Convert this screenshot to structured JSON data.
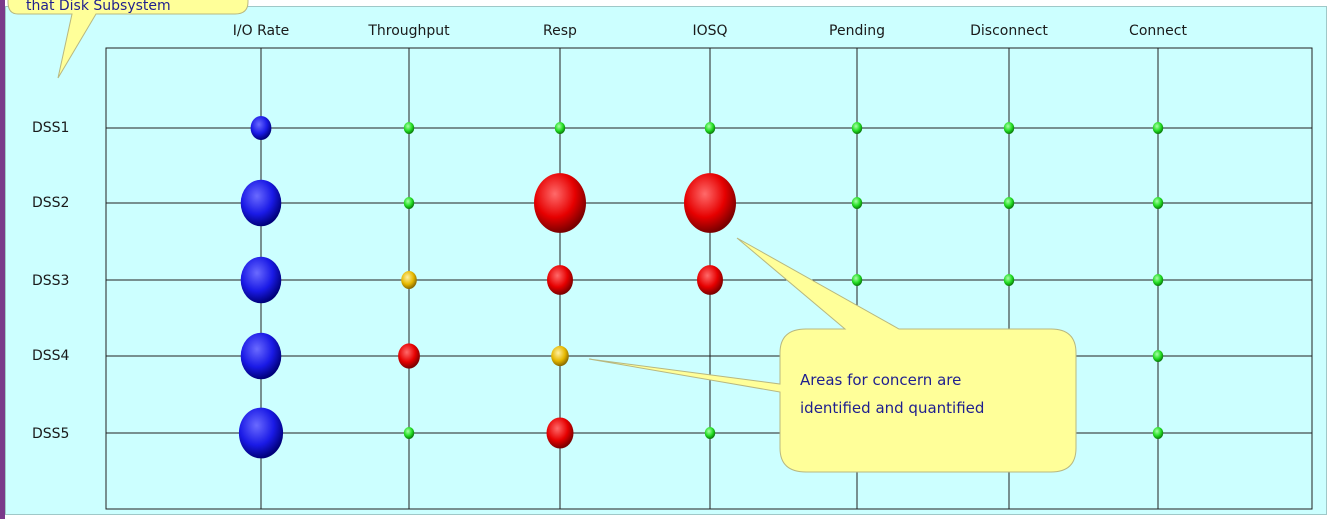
{
  "chart_data": {
    "type": "bubble-matrix",
    "columns": [
      "I/O Rate",
      "Throughput",
      "Resp",
      "IOSQ",
      "Pending",
      "Disconnect",
      "Connect"
    ],
    "rows": [
      "DSS1",
      "DSS2",
      "DSS3",
      "DSS4",
      "DSS5"
    ],
    "cells": [
      [
        {
          "color": "blue",
          "size": 0.4
        },
        {
          "color": "green",
          "size": 0.2
        },
        {
          "color": "green",
          "size": 0.2
        },
        {
          "color": "green",
          "size": 0.2
        },
        {
          "color": "green",
          "size": 0.2
        },
        {
          "color": "green",
          "size": 0.2
        },
        {
          "color": "green",
          "size": 0.2
        }
      ],
      [
        {
          "color": "blue",
          "size": 0.78
        },
        {
          "color": "green",
          "size": 0.2
        },
        {
          "color": "red",
          "size": 1.0
        },
        {
          "color": "red",
          "size": 1.0
        },
        {
          "color": "green",
          "size": 0.2
        },
        {
          "color": "green",
          "size": 0.2
        },
        {
          "color": "green",
          "size": 0.2
        }
      ],
      [
        {
          "color": "blue",
          "size": 0.78
        },
        {
          "color": "orange",
          "size": 0.3
        },
        {
          "color": "red",
          "size": 0.5
        },
        {
          "color": "red",
          "size": 0.5
        },
        {
          "color": "green",
          "size": 0.2
        },
        {
          "color": "green",
          "size": 0.2
        },
        {
          "color": "green",
          "size": 0.2
        }
      ],
      [
        {
          "color": "blue",
          "size": 0.78
        },
        {
          "color": "red",
          "size": 0.42
        },
        {
          "color": "orange",
          "size": 0.34
        },
        {
          "color": "none",
          "size": 0
        },
        {
          "color": "none",
          "size": 0
        },
        {
          "color": "none",
          "size": 0
        },
        {
          "color": "green",
          "size": 0.2
        }
      ],
      [
        {
          "color": "blue",
          "size": 0.85
        },
        {
          "color": "green",
          "size": 0.2
        },
        {
          "color": "red",
          "size": 0.52
        },
        {
          "color": "green",
          "size": 0.2
        },
        {
          "color": "none",
          "size": 0
        },
        {
          "color": "none",
          "size": 0
        },
        {
          "color": "green",
          "size": 0.2
        }
      ]
    ],
    "colors": {
      "blue": "#1a1ae6",
      "green": "#22dd22",
      "orange": "#e6b800",
      "red": "#e60000"
    }
  },
  "callouts": {
    "top_left": "that Disk Subsystem",
    "main": [
      "Areas for concern are",
      "identified and quantified"
    ]
  }
}
